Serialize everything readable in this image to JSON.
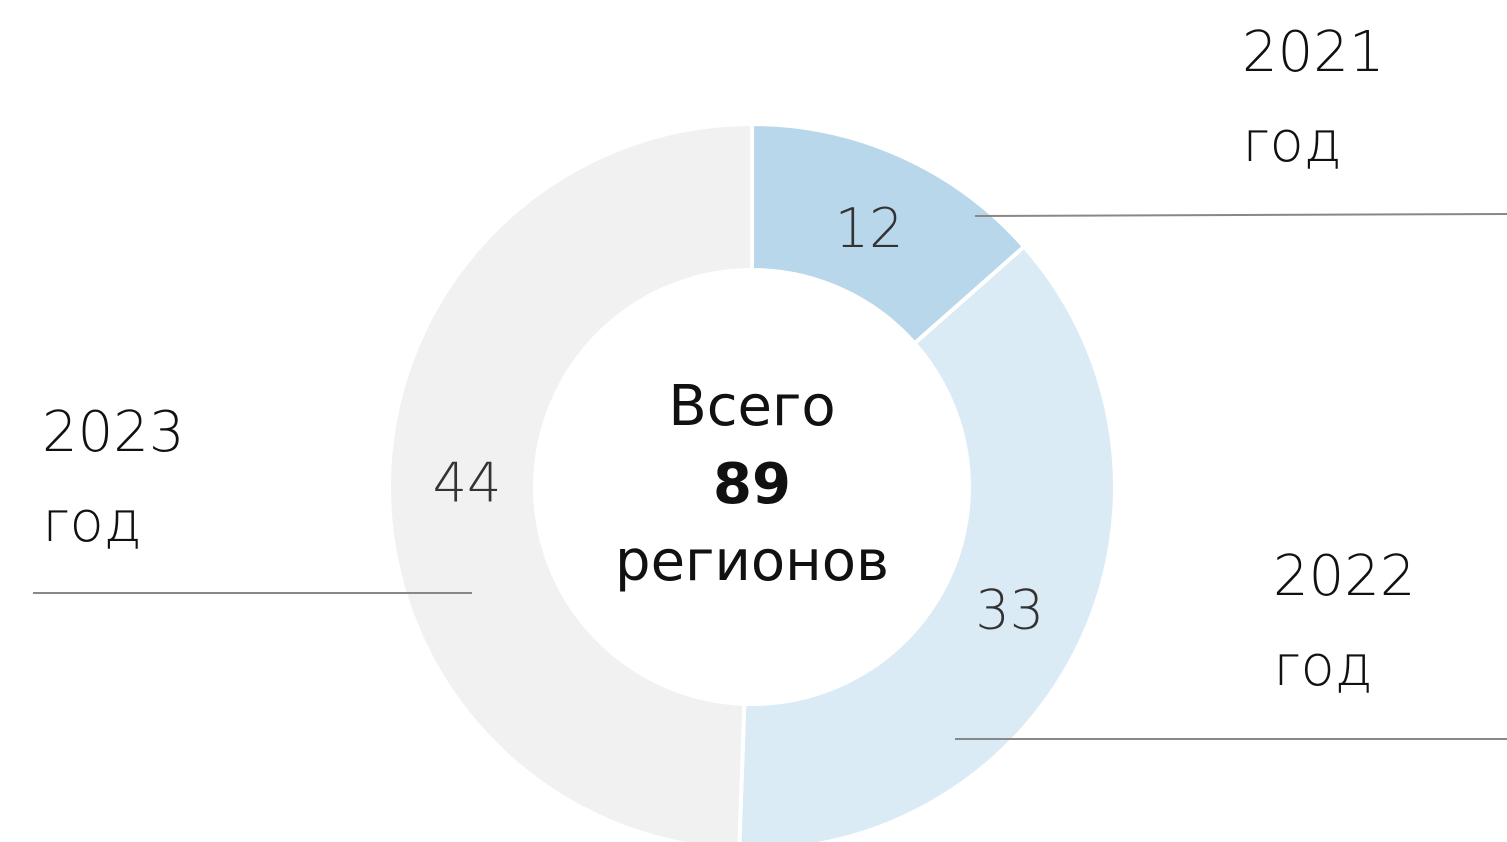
{
  "chart_data": {
    "type": "pie",
    "categories": [
      "2021 год",
      "2022 год",
      "2023 год"
    ],
    "values": [
      12,
      33,
      44
    ],
    "colors": [
      "#b9d7ea",
      "#dbebf5",
      "#f1f1f1"
    ],
    "center_label": {
      "top": "Всего",
      "total": 89,
      "bottom": "регионов"
    }
  }
}
